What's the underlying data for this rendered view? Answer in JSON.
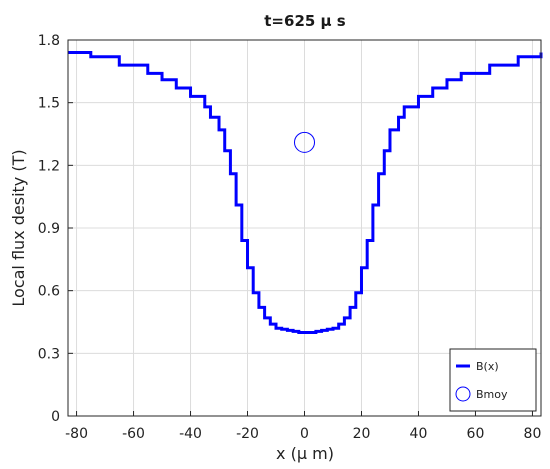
{
  "chart_data": {
    "type": "line",
    "title": "t=625 μ s",
    "xlabel": "x (μ m)",
    "ylabel": "Local flux desity (T)",
    "xlim": [
      -83,
      83
    ],
    "ylim": [
      0,
      1.8
    ],
    "xticks": [
      -80,
      -60,
      -40,
      -20,
      0,
      20,
      40,
      60,
      80
    ],
    "yticks": [
      0,
      0.3,
      0.6,
      0.9,
      1.2,
      1.5,
      1.8
    ],
    "ytick_labels": [
      "0",
      "0.3",
      "0.6",
      "0.9",
      "1.2",
      "1.5",
      "1.8"
    ],
    "grid": true,
    "legend_position": "bottom-right",
    "series": [
      {
        "name": "B(x)",
        "style": "step-line",
        "color": "#0000ff",
        "x": [
          -83,
          -75,
          -65,
          -55,
          -50,
          -45,
          -40,
          -35,
          -33,
          -30,
          -28,
          -26,
          -24,
          -22,
          -20,
          -18,
          -16,
          -14,
          -12,
          -10,
          -8,
          -6,
          -4,
          -2,
          0,
          2,
          4,
          6,
          8,
          10,
          12,
          14,
          16,
          18,
          20,
          22,
          24,
          26,
          28,
          30,
          33,
          35,
          40,
          45,
          50,
          55,
          65,
          75,
          83
        ],
        "y": [
          1.74,
          1.72,
          1.68,
          1.64,
          1.61,
          1.57,
          1.53,
          1.48,
          1.43,
          1.37,
          1.27,
          1.16,
          1.01,
          0.84,
          0.71,
          0.59,
          0.52,
          0.47,
          0.44,
          0.42,
          0.415,
          0.41,
          0.405,
          0.4,
          0.4,
          0.4,
          0.405,
          0.41,
          0.415,
          0.42,
          0.44,
          0.47,
          0.52,
          0.59,
          0.71,
          0.84,
          1.01,
          1.16,
          1.27,
          1.37,
          1.43,
          1.48,
          1.53,
          1.57,
          1.61,
          1.64,
          1.68,
          1.72,
          1.74
        ]
      },
      {
        "name": "Bmoy",
        "style": "marker-circle",
        "color": "#0000ff",
        "x": [
          0
        ],
        "y": [
          1.31
        ]
      }
    ]
  }
}
